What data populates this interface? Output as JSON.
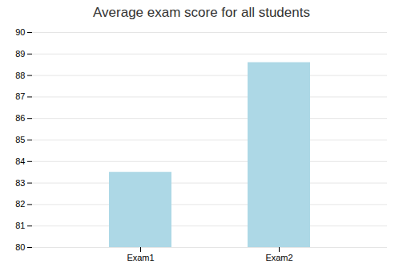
{
  "chart_data": {
    "type": "bar",
    "title": "Average exam score for all students",
    "categories": [
      "Exam1",
      "Exam2"
    ],
    "values": [
      83.5,
      88.6
    ],
    "color": "#add8e6",
    "ylim": [
      80,
      90
    ],
    "yticks": [
      80,
      81,
      82,
      83,
      84,
      85,
      86,
      87,
      88,
      89,
      90
    ],
    "grid": true
  }
}
